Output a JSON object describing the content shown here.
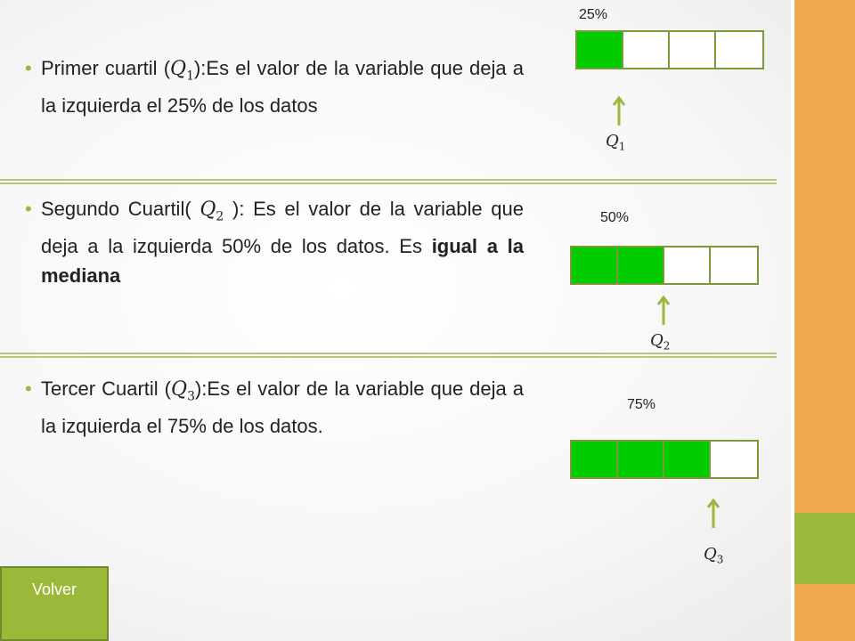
{
  "items": [
    {
      "prefix": "Primer cuartil (",
      "q_letter": "Q",
      "q_sub": "1",
      "suffix": "):Es el valor   de la variable que deja a la izquierda el 25% de los datos",
      "bold": "",
      "percent_label": "25%",
      "filled": 1,
      "total": 4,
      "label_letter": "Q",
      "label_sub": "1"
    },
    {
      "prefix": "Segundo Cuartil( ",
      "q_letter": "Q",
      "q_sub": "2",
      "suffix": " ): Es el valor de la variable que deja a la izquierda 50% de los datos. Es ",
      "bold": "igual a la mediana",
      "percent_label": "50%",
      "filled": 2,
      "total": 4,
      "label_letter": "Q",
      "label_sub": "2"
    },
    {
      "prefix": "Tercer Cuartil (",
      "q_letter": "Q",
      "q_sub": "3",
      "suffix": "):Es el valor de la variable que deja a la izquierda el 75% de los datos.",
      "bold": "",
      "percent_label": "75%",
      "filled": 3,
      "total": 4,
      "label_letter": "Q",
      "label_sub": "3"
    }
  ],
  "back_button": {
    "label": "Volver"
  },
  "colors": {
    "filled": "#00cc00",
    "empty": "#ffffff",
    "arrow": "#9cb83a",
    "accent_orange": "#eea94f",
    "accent_green": "#9cb83a"
  }
}
